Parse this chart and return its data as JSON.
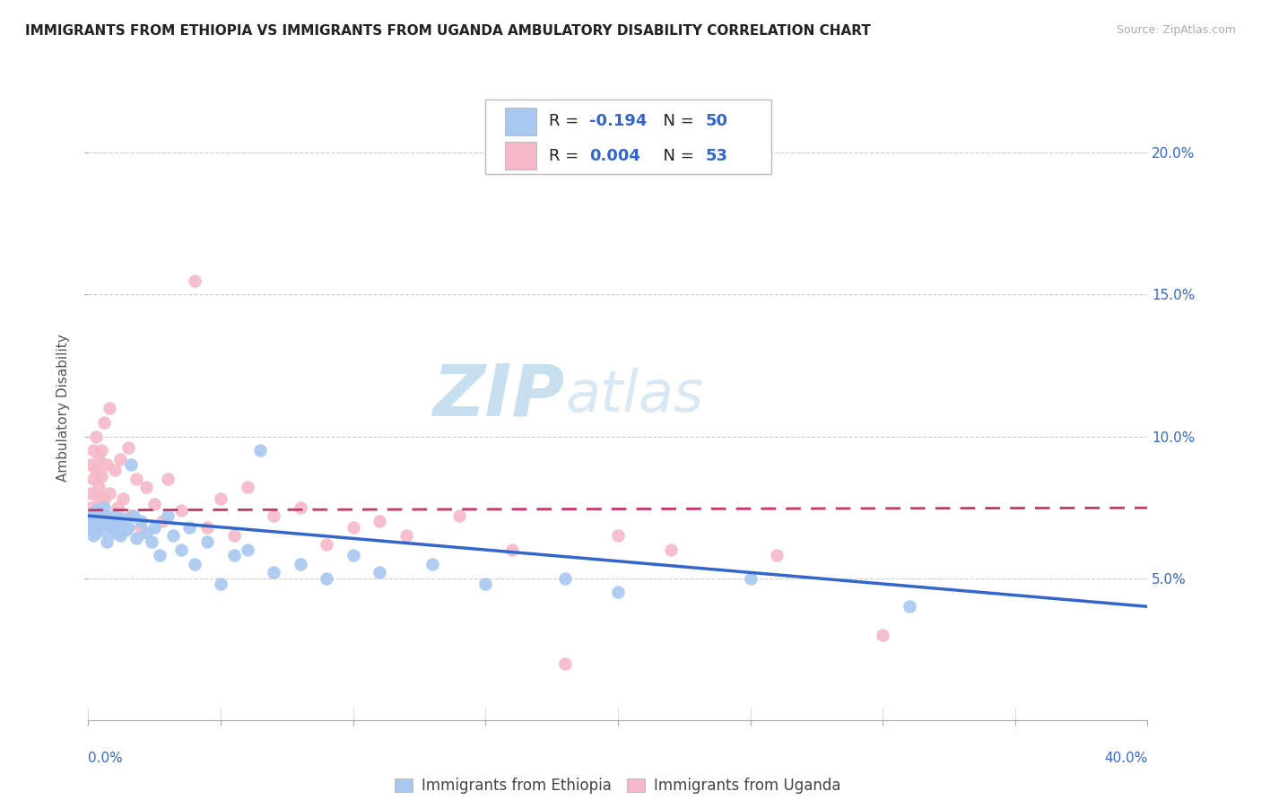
{
  "title": "IMMIGRANTS FROM ETHIOPIA VS IMMIGRANTS FROM UGANDA AMBULATORY DISABILITY CORRELATION CHART",
  "source": "Source: ZipAtlas.com",
  "ylabel": "Ambulatory Disability",
  "legend_bottom_ethiopia": "Immigrants from Ethiopia",
  "legend_bottom_uganda": "Immigrants from Uganda",
  "color_ethiopia": "#a8c8f0",
  "color_uganda": "#f4b8c8",
  "color_ethiopia_line": "#3366cc",
  "color_uganda_line": "#cc3366",
  "color_grid": "#cccccc",
  "color_title": "#222222",
  "color_source": "#aaaaaa",
  "color_rn_value": "#3366cc",
  "color_r_label": "#222222",
  "watermark_zip": "ZIP",
  "watermark_atlas": "atlas",
  "watermark_color_zip": "#c8dff0",
  "watermark_color_atlas": "#d8e8f4",
  "ethiopia_x": [
    0.001,
    0.001,
    0.002,
    0.002,
    0.003,
    0.003,
    0.004,
    0.005,
    0.005,
    0.006,
    0.006,
    0.007,
    0.008,
    0.009,
    0.01,
    0.01,
    0.011,
    0.012,
    0.013,
    0.014,
    0.015,
    0.016,
    0.017,
    0.018,
    0.02,
    0.022,
    0.024,
    0.025,
    0.027,
    0.03,
    0.032,
    0.035,
    0.038,
    0.04,
    0.045,
    0.05,
    0.055,
    0.06,
    0.065,
    0.07,
    0.08,
    0.09,
    0.1,
    0.11,
    0.13,
    0.15,
    0.18,
    0.2,
    0.25,
    0.31
  ],
  "ethiopia_y": [
    0.068,
    0.072,
    0.065,
    0.07,
    0.074,
    0.066,
    0.071,
    0.069,
    0.073,
    0.067,
    0.075,
    0.063,
    0.07,
    0.068,
    0.066,
    0.072,
    0.069,
    0.065,
    0.071,
    0.067,
    0.068,
    0.09,
    0.072,
    0.064,
    0.07,
    0.066,
    0.063,
    0.068,
    0.058,
    0.072,
    0.065,
    0.06,
    0.068,
    0.055,
    0.063,
    0.048,
    0.058,
    0.06,
    0.095,
    0.052,
    0.055,
    0.05,
    0.058,
    0.052,
    0.055,
    0.048,
    0.05,
    0.045,
    0.05,
    0.04
  ],
  "uganda_x": [
    0.001,
    0.001,
    0.001,
    0.002,
    0.002,
    0.002,
    0.003,
    0.003,
    0.003,
    0.004,
    0.004,
    0.004,
    0.005,
    0.005,
    0.005,
    0.006,
    0.006,
    0.007,
    0.007,
    0.008,
    0.008,
    0.009,
    0.01,
    0.011,
    0.012,
    0.013,
    0.015,
    0.016,
    0.018,
    0.02,
    0.022,
    0.025,
    0.028,
    0.03,
    0.035,
    0.04,
    0.045,
    0.05,
    0.055,
    0.06,
    0.07,
    0.08,
    0.09,
    0.1,
    0.11,
    0.12,
    0.14,
    0.16,
    0.18,
    0.2,
    0.22,
    0.26,
    0.3
  ],
  "uganda_y": [
    0.075,
    0.08,
    0.09,
    0.068,
    0.085,
    0.095,
    0.072,
    0.088,
    0.1,
    0.078,
    0.092,
    0.082,
    0.07,
    0.086,
    0.095,
    0.078,
    0.105,
    0.072,
    0.09,
    0.08,
    0.11,
    0.068,
    0.088,
    0.075,
    0.092,
    0.078,
    0.096,
    0.072,
    0.085,
    0.068,
    0.082,
    0.076,
    0.07,
    0.085,
    0.074,
    0.155,
    0.068,
    0.078,
    0.065,
    0.082,
    0.072,
    0.075,
    0.062,
    0.068,
    0.07,
    0.065,
    0.072,
    0.06,
    0.02,
    0.065,
    0.06,
    0.058,
    0.03
  ],
  "xlim": [
    0.0,
    0.4
  ],
  "ylim": [
    0.0,
    0.22
  ],
  "ethiopia_slope": -0.08,
  "ethiopia_intercept": 0.072,
  "uganda_slope": 0.002,
  "uganda_intercept": 0.074,
  "xtick_positions": [
    0.0,
    0.05,
    0.1,
    0.15,
    0.2,
    0.25,
    0.3,
    0.35,
    0.4
  ],
  "ytick_positions": [
    0.05,
    0.1,
    0.15,
    0.2
  ]
}
